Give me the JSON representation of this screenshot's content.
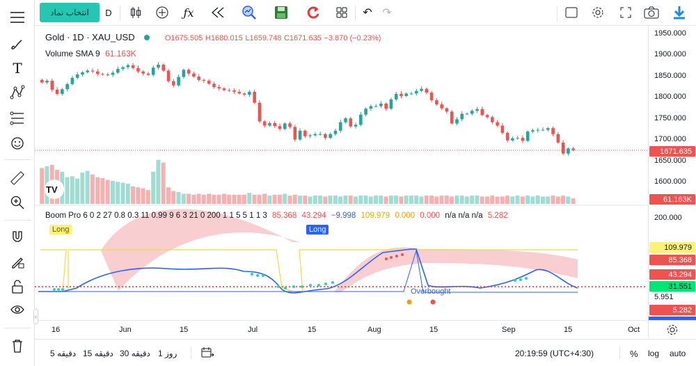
{
  "toolbar": {
    "symbol_button": "انتخاب نماد",
    "interval": "D"
  },
  "legend": {
    "symbol": "Gold · 1D · XAU_USD",
    "open": "O1675.505",
    "high": "H1680.015",
    "low": "L1659.748",
    "close": "C1671.635",
    "change": "−3.870 (−0.23%)",
    "volume_label": "Volume SMA 9",
    "volume_value": "61.163K"
  },
  "indicator": {
    "name": "Boom Pro 6 0 2 27 0.8 0.3 11 0.99 9 6 3 21 0 200 1 1 5 5 1 1 3",
    "v1": "85.368",
    "v2": "43.294",
    "v3": "−9.998",
    "v4": "109.979",
    "v5": "0.000",
    "v6": "0.000",
    "v7": "n/a n/a n/a",
    "v8": "5.282",
    "long1": "Long",
    "long2": "Long",
    "overbought": "Overbought"
  },
  "price_axis": {
    "labels": [
      "1950.000",
      "1900.000",
      "1850.000",
      "1800.000",
      "1750.000",
      "1700.000",
      "1650.000",
      "1600.000",
      "200.000"
    ],
    "price_tag": "1671.635",
    "vol_tag": "61.163K",
    "ind_tags": [
      "109.979",
      "85.368",
      "43.294",
      "31.551",
      "5.951",
      "5.282"
    ]
  },
  "time_axis": [
    "16",
    "Jun",
    "15",
    "Jul",
    "15",
    "Aug",
    "15",
    "Sep",
    "15",
    "Oct"
  ],
  "bottom": {
    "ranges": [
      "5 دقیقه",
      "15 دقیقه",
      "30 دقیقه",
      "1 روز"
    ],
    "clock": "20:19:59 (UTC+4:30)",
    "pct": "%",
    "log": "log",
    "auto": "auto"
  },
  "colors": {
    "up": "#26a69a",
    "down": "#ef5350",
    "accent": "#2962ff"
  },
  "chart_data": {
    "type": "candlestick",
    "closes": [
      1832,
      1836,
      1815,
      1805,
      1816,
      1828,
      1843,
      1851,
      1856,
      1860,
      1858,
      1852,
      1851,
      1850,
      1855,
      1864,
      1868,
      1873,
      1866,
      1858,
      1853,
      1850,
      1867,
      1874,
      1860,
      1835,
      1825,
      1845,
      1862,
      1853,
      1846,
      1838,
      1836,
      1829,
      1821,
      1818,
      1814,
      1813,
      1810,
      1806,
      1803,
      1810,
      1784,
      1740,
      1730,
      1736,
      1729,
      1722,
      1735,
      1727,
      1697,
      1718,
      1705,
      1707,
      1710,
      1710,
      1701,
      1710,
      1718,
      1738,
      1747,
      1728,
      1732,
      1756,
      1770,
      1776,
      1776,
      1782,
      1770,
      1792,
      1805,
      1800,
      1806,
      1806,
      1812,
      1817,
      1808,
      1790,
      1780,
      1771,
      1763,
      1735,
      1745,
      1758,
      1758,
      1765,
      1769,
      1755,
      1750,
      1738,
      1730,
      1713,
      1695,
      1700,
      1701,
      1694,
      1716,
      1719,
      1720,
      1720,
      1724,
      1710,
      1690,
      1664,
      1676,
      1672
    ],
    "volumes": [
      78,
      82,
      85,
      74,
      70,
      58,
      60,
      55,
      68,
      72,
      64,
      58,
      56,
      52,
      50,
      48,
      46,
      44,
      38,
      36,
      34,
      30,
      70,
      96,
      90,
      36,
      28,
      26,
      22,
      22,
      20,
      22,
      20,
      22,
      20,
      20,
      22,
      20,
      20,
      20,
      20,
      24,
      20,
      20,
      22,
      18,
      20,
      20,
      22,
      18,
      20,
      18,
      18,
      16,
      18,
      18,
      16,
      18,
      18,
      16,
      18,
      18,
      16,
      18,
      18,
      16,
      18,
      18,
      16,
      18,
      18,
      16,
      18,
      18,
      18,
      16,
      18,
      18,
      16,
      18,
      18,
      16,
      18,
      18,
      16,
      18,
      18,
      16,
      16,
      18,
      16,
      16,
      18,
      16,
      18,
      16,
      18,
      16,
      18,
      16,
      16,
      18,
      16,
      18,
      16,
      12
    ]
  }
}
